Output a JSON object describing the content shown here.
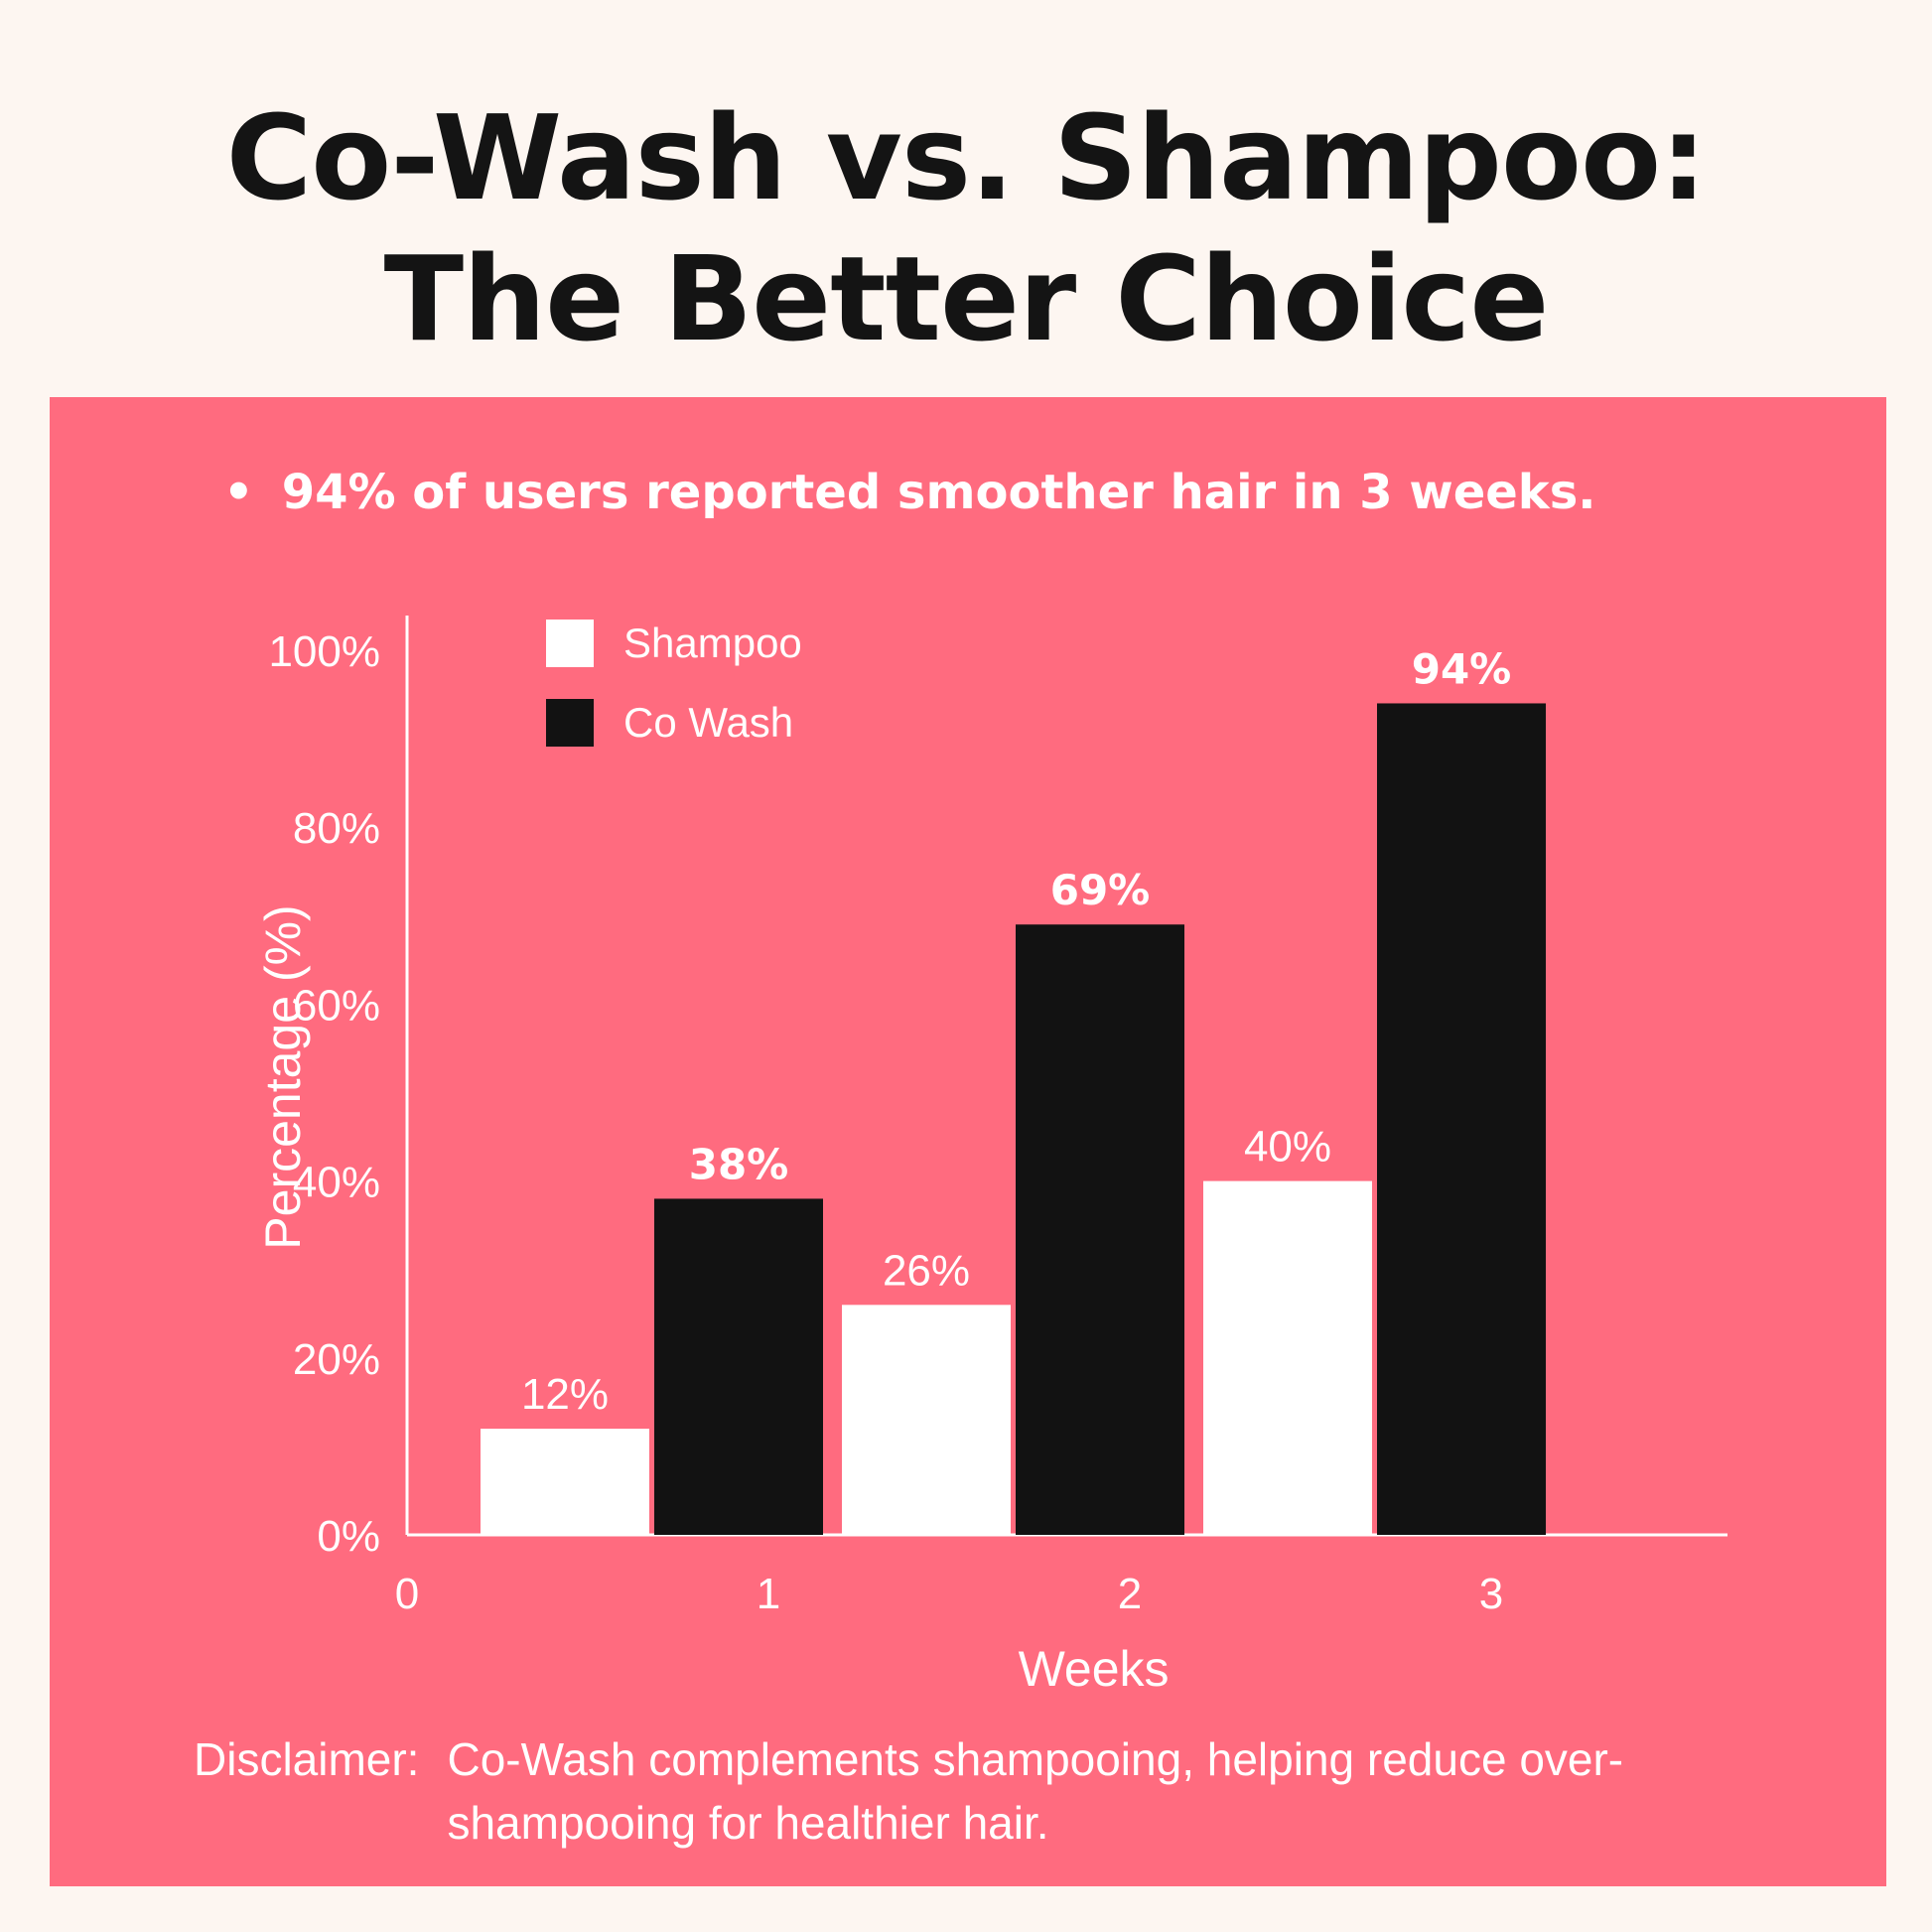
{
  "title_line1": "Co-Wash vs. Shampoo:",
  "title_line2": "The Better Choice",
  "bullet": "94% of users reported smoother hair in 3 weeks.",
  "disclaimer_label": "Disclaimer:",
  "disclaimer_text": "Co-Wash complements shampooing, helping reduce over-shampooing for healthier hair.",
  "colors": {
    "background": "#fdf6f1",
    "panel": "#ff6b7f",
    "shampoo": "#ffffff",
    "cowash": "#121212",
    "text": "#ffffff"
  },
  "chart_data": {
    "type": "bar",
    "title": "",
    "xlabel": "Weeks",
    "ylabel": "Percentage (%)",
    "categories": [
      "1",
      "2",
      "3"
    ],
    "x_ticks": [
      "0",
      "1",
      "2",
      "3"
    ],
    "y_ticks": [
      "0%",
      "20%",
      "40%",
      "60%",
      "80%",
      "100%"
    ],
    "ylim": [
      0,
      100
    ],
    "legend_position": "top-left",
    "grid": false,
    "series": [
      {
        "name": "Shampoo",
        "color": "#ffffff",
        "values": [
          12,
          26,
          40
        ],
        "labels": [
          "12%",
          "26%",
          "40%"
        ]
      },
      {
        "name": "Co Wash",
        "color": "#121212",
        "values": [
          38,
          69,
          94
        ],
        "labels": [
          "38%",
          "69%",
          "94%"
        ]
      }
    ]
  }
}
